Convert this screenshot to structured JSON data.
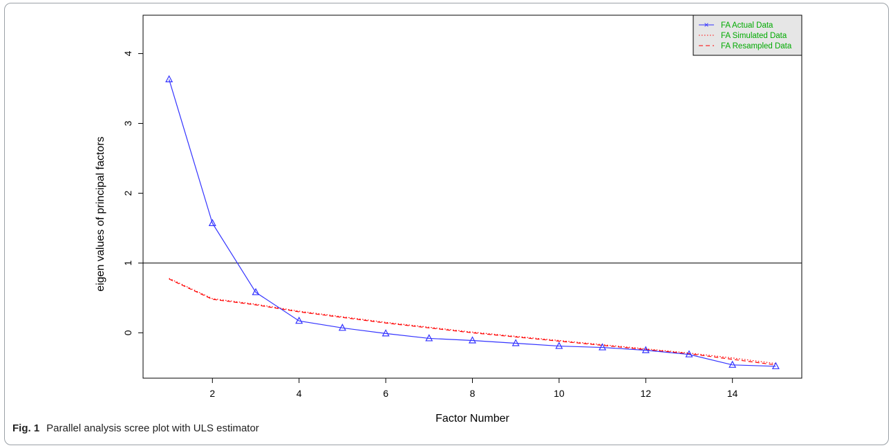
{
  "figure": {
    "label": "Fig. 1",
    "caption": "Parallel analysis scree plot with ULS estimator"
  },
  "colors": {
    "actual": "#3333ff",
    "simulated": "#ff0000",
    "resampled": "#ff0000",
    "legend_text": "#00aa00",
    "legend_bg": "#e6e6e6"
  },
  "chart_data": {
    "type": "line",
    "xlabel": "Factor Number",
    "ylabel": "eigen values of principal factors",
    "xlim": [
      0.4,
      15.6
    ],
    "ylim": [
      -0.65,
      4.55
    ],
    "x_ticks": [
      2,
      4,
      6,
      8,
      10,
      12,
      14
    ],
    "y_ticks": [
      0,
      1,
      2,
      3,
      4
    ],
    "reference_line": 1,
    "grid": false,
    "legend_position": "top-right",
    "x": [
      1,
      2,
      3,
      4,
      5,
      6,
      7,
      8,
      9,
      10,
      11,
      12,
      13,
      14,
      15
    ],
    "series": [
      {
        "name": "FA  Actual Data",
        "style": "solid",
        "marker": "triangle",
        "values": [
          3.63,
          1.57,
          0.58,
          0.17,
          0.07,
          -0.01,
          -0.08,
          -0.11,
          -0.15,
          -0.19,
          -0.21,
          -0.25,
          -0.31,
          -0.46,
          -0.48
        ]
      },
      {
        "name": "FA  Simulated Data",
        "style": "dotted",
        "values": [
          0.78,
          0.49,
          0.41,
          0.31,
          0.23,
          0.15,
          0.08,
          0.01,
          -0.05,
          -0.11,
          -0.17,
          -0.23,
          -0.29,
          -0.36,
          -0.44
        ]
      },
      {
        "name": "FA  Resampled Data",
        "style": "dashed",
        "values": [
          0.77,
          0.48,
          0.4,
          0.3,
          0.22,
          0.14,
          0.07,
          0.0,
          -0.06,
          -0.12,
          -0.18,
          -0.24,
          -0.3,
          -0.38,
          -0.46
        ]
      }
    ]
  }
}
